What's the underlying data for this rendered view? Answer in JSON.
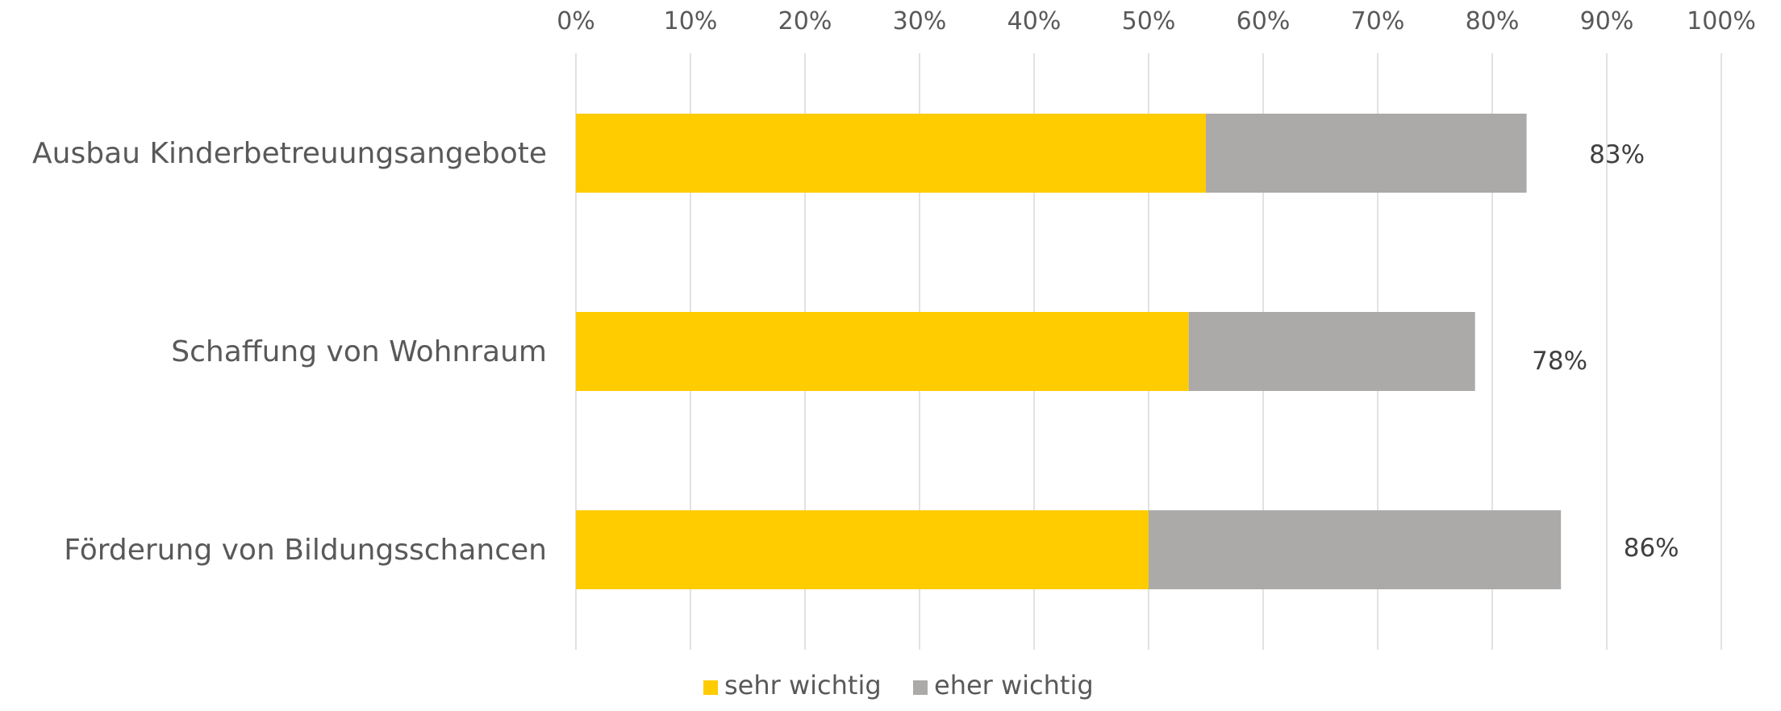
{
  "chart_data": {
    "type": "bar",
    "orientation": "horizontal",
    "stacked": true,
    "categories": [
      "Ausbau Kinderbetreuungsangebote",
      "Schaffung von Wohnraum",
      "Förderung von Bildungsschancen"
    ],
    "series": [
      {
        "name": "sehr wichtig",
        "values": [
          55,
          53.5,
          50
        ],
        "color": "#FFCC00"
      },
      {
        "name": "eher wichtig",
        "values": [
          28,
          25,
          36
        ],
        "color": "#ABAAA8"
      }
    ],
    "totals": [
      83,
      78,
      86
    ],
    "total_labels": [
      "83%",
      "78%",
      "86%"
    ],
    "x_ticks": [
      "0%",
      "10%",
      "20%",
      "30%",
      "40%",
      "50%",
      "60%",
      "70%",
      "80%",
      "90%",
      "100%"
    ],
    "xlim": [
      0,
      100
    ],
    "x_axis_position": "top",
    "grid": true,
    "gridline_color": "#D9D9D9",
    "label_color": "#595959",
    "legend_placement": "bottom-center"
  }
}
